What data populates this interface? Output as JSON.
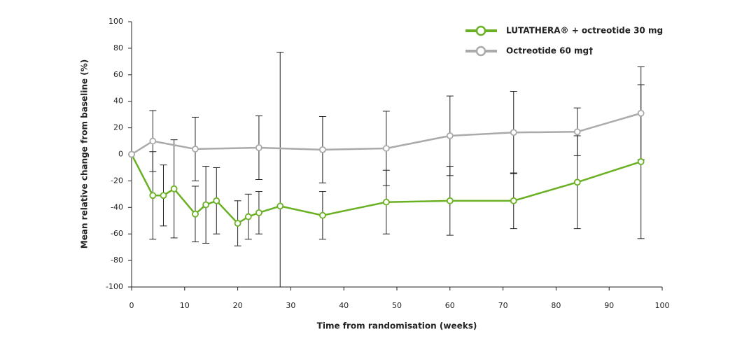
{
  "chart_data": {
    "type": "line",
    "x_label": "Time from randomisation (weeks)",
    "y_label": "Mean relative change from baseline (%)",
    "xlim": [
      0,
      100
    ],
    "xticks": [
      0,
      10,
      20,
      30,
      40,
      50,
      60,
      70,
      80,
      90,
      100
    ],
    "ylim": [
      -100,
      100
    ],
    "yticks": [
      -100,
      -80,
      -60,
      -40,
      -20,
      0,
      20,
      40,
      60,
      80,
      100
    ],
    "legend": "upper right",
    "series": [
      {
        "name": "LUTATHERA® + octreotide 30 mg",
        "color": "#6ab023",
        "x": [
          0,
          4,
          6,
          8,
          12,
          14,
          16,
          20,
          22,
          24,
          28,
          36,
          48,
          60,
          72,
          84,
          96
        ],
        "values": [
          0,
          -31,
          -31,
          -26,
          -45,
          -38,
          -35,
          -52,
          -47,
          -44,
          -39,
          -46,
          -36,
          -35,
          -35,
          -21,
          -5.5
        ],
        "errors": [
          null,
          33,
          23,
          37,
          21,
          29,
          25,
          17,
          17,
          16,
          116,
          18,
          24,
          26,
          21,
          35,
          58
        ]
      },
      {
        "name": "Octreotide 60 mg†",
        "color": "#aaaaaa",
        "x": [
          0,
          4,
          12,
          24,
          36,
          48,
          60,
          72,
          84,
          96
        ],
        "values": [
          0,
          10,
          4,
          5,
          3.5,
          4.5,
          14,
          16.5,
          17,
          31
        ],
        "errors": [
          null,
          23,
          24,
          24,
          25,
          28,
          30,
          31,
          18,
          35
        ]
      }
    ]
  }
}
